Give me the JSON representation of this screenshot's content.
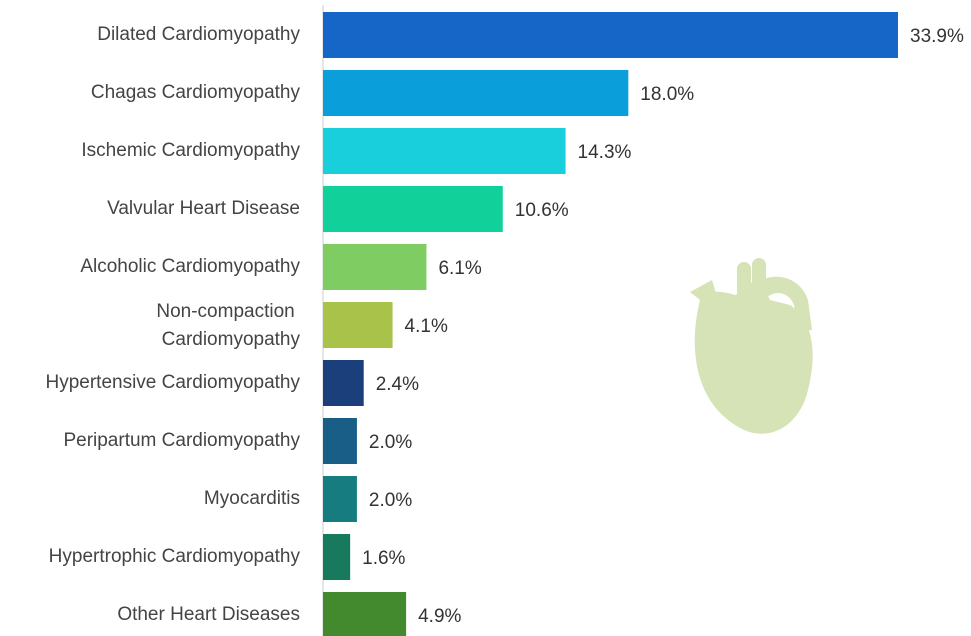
{
  "chart_data": {
    "type": "bar",
    "categories": [
      "Dilated Cardiomyopathy",
      "Chagas Cardiomyopathy",
      "Ischemic Cardiomyopathy",
      "Valvular Heart Disease",
      "Alcoholic Cardiomyopathy",
      "Non-compaction Cardiomyopathy",
      "Hypertensive Cardiomyopathy",
      "Peripartum Cardiomyopathy",
      "Myocarditis",
      "Hypertrophic Cardiomyopathy",
      "Other Heart Diseases"
    ],
    "values": [
      33.9,
      18.0,
      14.3,
      10.6,
      6.1,
      4.1,
      2.4,
      2.0,
      2.0,
      1.6,
      4.9
    ],
    "value_labels": [
      "33.9%",
      "18.0%",
      "14.3%",
      "10.6%",
      "6.1%",
      "4.1%",
      "2.4%",
      "2.0%",
      "2.0%",
      "1.6%",
      "4.9%"
    ],
    "colors": [
      "#1566c6",
      "#0a9fdb",
      "#19cfdc",
      "#12d09a",
      "#7fcc62",
      "#a9c24a",
      "#1b3f7a",
      "#185e86",
      "#167c80",
      "#177a5c",
      "#438a2e"
    ]
  }
}
